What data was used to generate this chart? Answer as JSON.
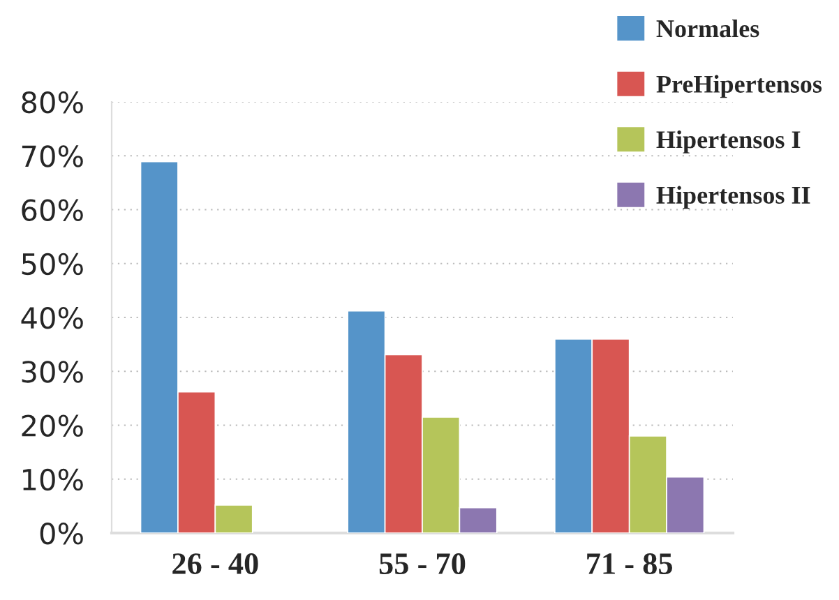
{
  "chart_data": {
    "type": "bar",
    "categories": [
      "26 - 40",
      "55 - 70",
      "71 - 85"
    ],
    "series": [
      {
        "name": "Normales",
        "color": "#5594c9",
        "values": [
          68.9,
          41.2,
          36.0
        ]
      },
      {
        "name": "PreHipertensos",
        "color": "#d85652",
        "values": [
          26.2,
          33.1,
          36.0
        ]
      },
      {
        "name": "Hipertensos I",
        "color": "#b5c55a",
        "values": [
          5.2,
          21.5,
          18.0
        ]
      },
      {
        "name": "Hipertensos II",
        "color": "#8c77b0",
        "values": [
          null,
          4.7,
          10.4
        ]
      }
    ],
    "ylim": [
      0,
      80
    ],
    "yticks": [
      {
        "value": 0,
        "label": "0%"
      },
      {
        "value": 10,
        "label": "10%"
      },
      {
        "value": 20,
        "label": "20%"
      },
      {
        "value": 30,
        "label": "30%"
      },
      {
        "value": 40,
        "label": "40%"
      },
      {
        "value": 50,
        "label": "50%"
      },
      {
        "value": 60,
        "label": "60%"
      },
      {
        "value": 70,
        "label": "70%"
      },
      {
        "value": 80,
        "label": "80%"
      }
    ],
    "grid": "y",
    "legend": "top right"
  }
}
